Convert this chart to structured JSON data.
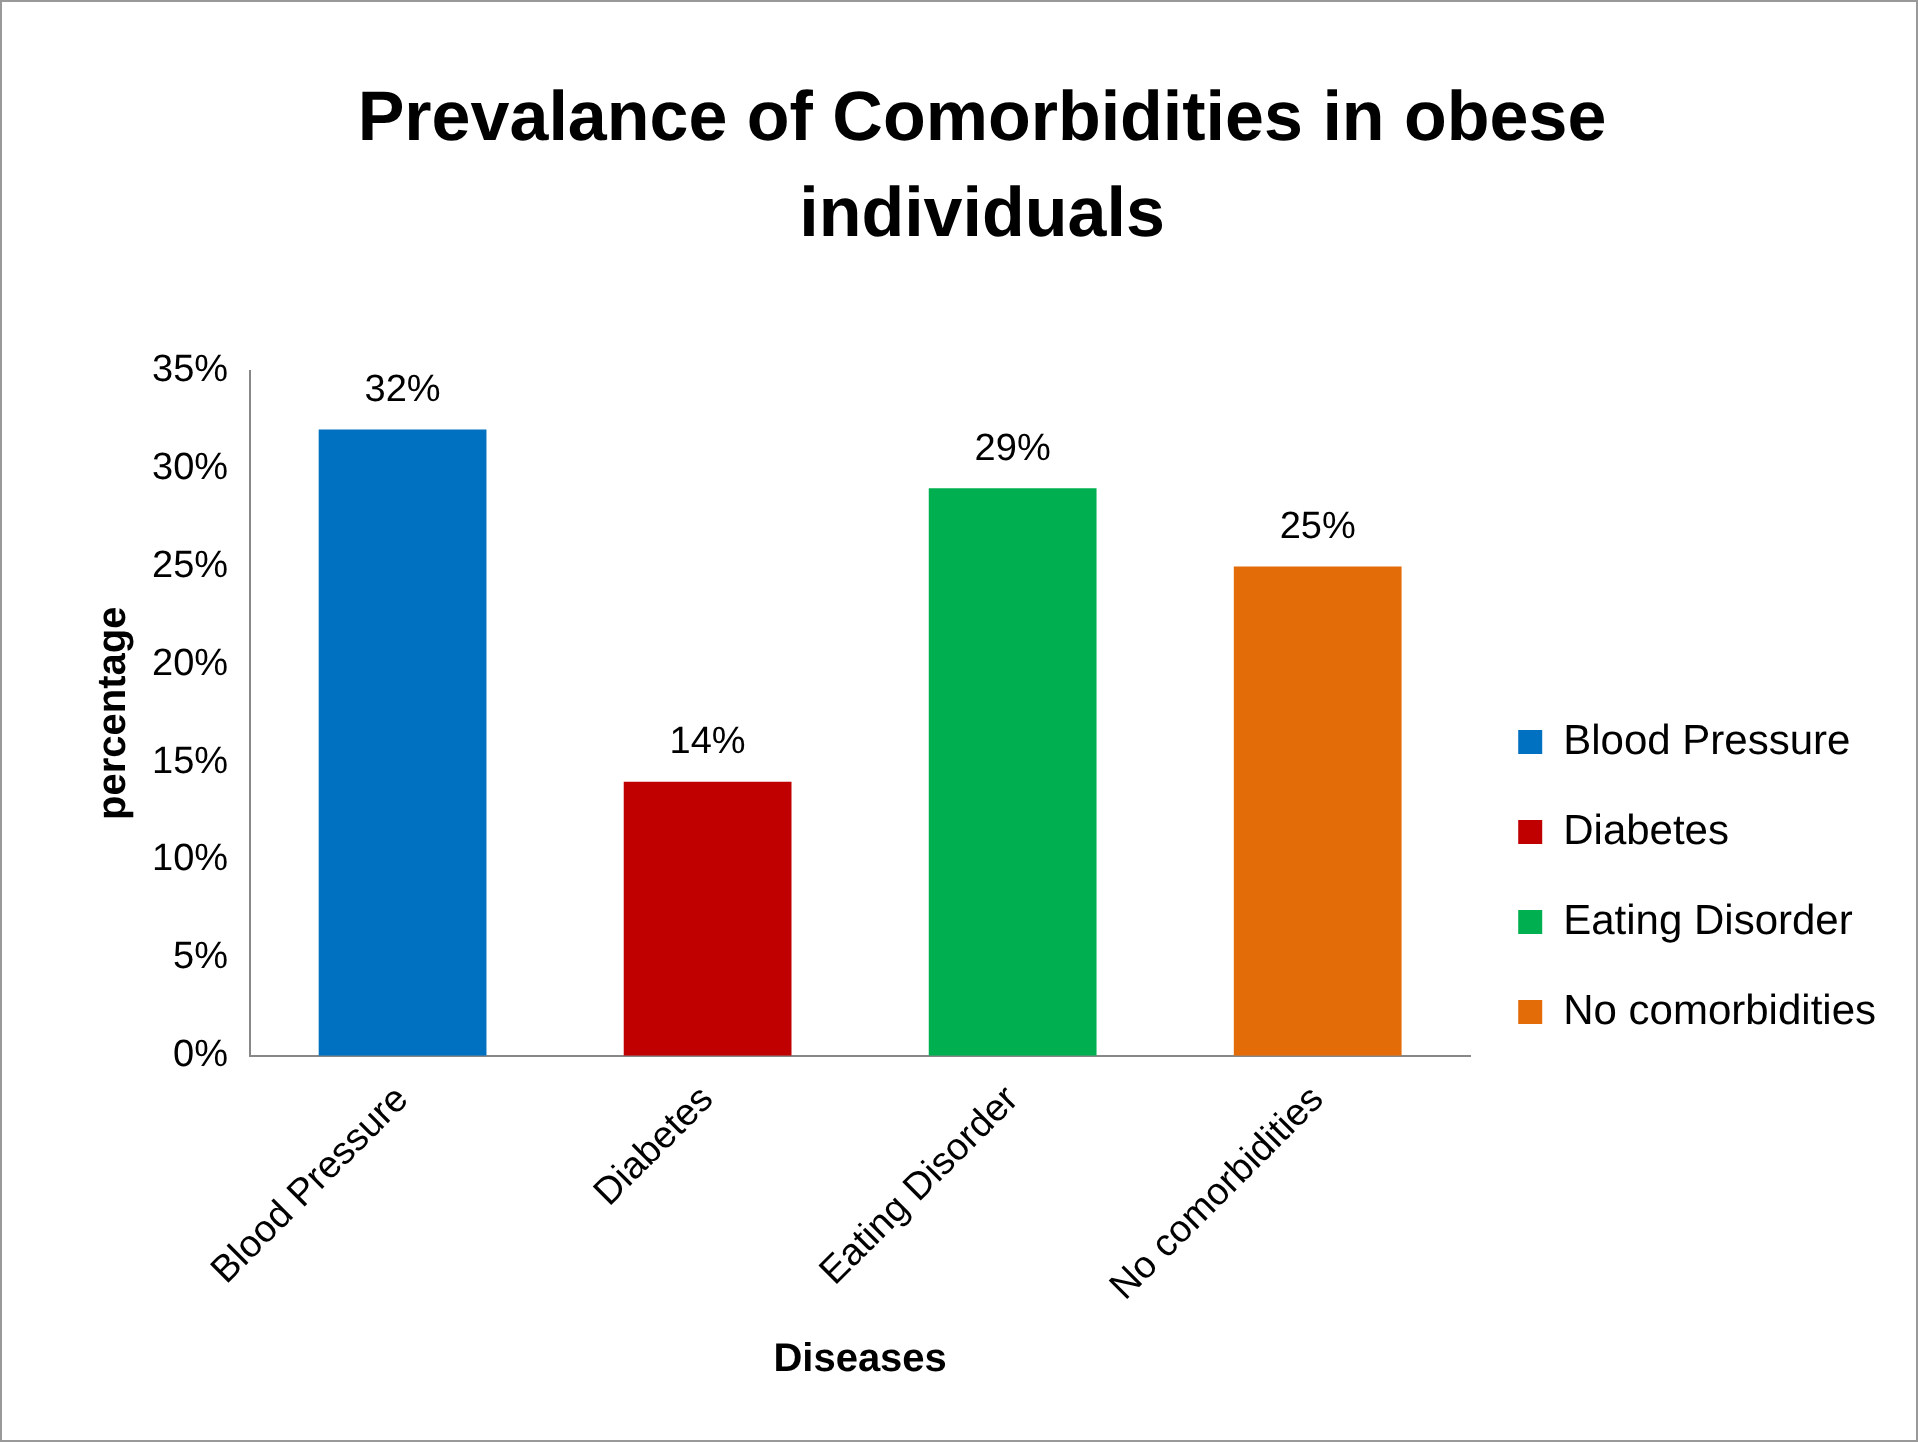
{
  "chart_data": {
    "type": "bar",
    "title": "Prevalance of Comorbidities  in obese individuals",
    "xlabel": "Diseases",
    "ylabel": "percentage",
    "categories": [
      "Blood Pressure",
      "Diabetes",
      "Eating Disorder",
      "No comorbidities"
    ],
    "series": [
      {
        "name": "Blood Pressure",
        "color": "#0070c0",
        "values": [
          32,
          null,
          null,
          null
        ],
        "value_labels": [
          "32%",
          null,
          null,
          null
        ]
      },
      {
        "name": "Diabetes",
        "color": "#c00000",
        "values": [
          null,
          14,
          null,
          null
        ],
        "value_labels": [
          null,
          "14%",
          null,
          null
        ]
      },
      {
        "name": "Eating Disorder",
        "color": "#00b050",
        "values": [
          null,
          null,
          29,
          null
        ],
        "value_labels": [
          null,
          null,
          "29%",
          null
        ]
      },
      {
        "name": "No comorbidities",
        "color": "#e36c09",
        "values": [
          null,
          null,
          null,
          25
        ],
        "value_labels": [
          null,
          null,
          null,
          "25%"
        ]
      }
    ],
    "ylim": [
      0,
      35
    ],
    "yticks": [
      {
        "value": 0,
        "label": "0%"
      },
      {
        "value": 5,
        "label": "5%"
      },
      {
        "value": 10,
        "label": "10%"
      },
      {
        "value": 15,
        "label": "15%"
      },
      {
        "value": 20,
        "label": "20%"
      },
      {
        "value": 25,
        "label": "25%"
      },
      {
        "value": 30,
        "label": "30%"
      },
      {
        "value": 35,
        "label": "35%"
      }
    ],
    "grid": false,
    "legend": "right"
  }
}
